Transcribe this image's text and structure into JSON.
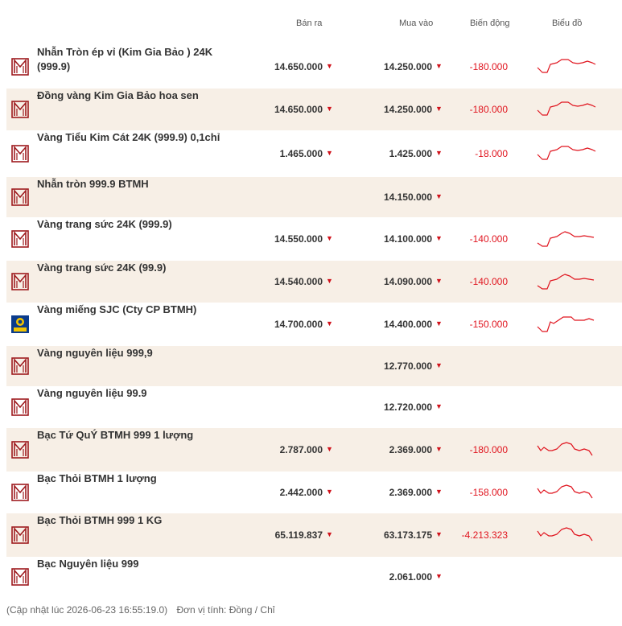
{
  "header": {
    "sell": "Bán ra",
    "buy": "Mua vào",
    "change": "Biến động",
    "chart": "Biểu đồ"
  },
  "rows": [
    {
      "name": "Nhẫn Tròn ép vỉ (Kim Gia Bảo ) 24K (999.9)",
      "sell": "14.650.000",
      "buy": "14.250.000",
      "change": "-180.000",
      "logo": "btmh-logo",
      "spark": "gold"
    },
    {
      "name": "Đồng vàng Kim Gia Bảo hoa sen",
      "sell": "14.650.000",
      "buy": "14.250.000",
      "change": "-180.000",
      "logo": "btmh-logo",
      "spark": "gold"
    },
    {
      "name": "Vàng Tiểu Kim Cát 24K (999.9) 0,1chỉ",
      "sell": "1.465.000",
      "buy": "1.425.000",
      "change": "-18.000",
      "logo": "btmh-logo",
      "spark": "gold"
    },
    {
      "name": "Nhẫn tròn 999.9 BTMH",
      "sell": "",
      "buy": "14.150.000",
      "change": "",
      "logo": "btmh-logo",
      "spark": ""
    },
    {
      "name": "Vàng trang sức 24K (999.9)",
      "sell": "14.550.000",
      "buy": "14.100.000",
      "change": "-140.000",
      "logo": "btmh-logo",
      "spark": "gold2"
    },
    {
      "name": "Vàng trang sức 24K (99.9)",
      "sell": "14.540.000",
      "buy": "14.090.000",
      "change": "-140.000",
      "logo": "btmh-logo",
      "spark": "gold2"
    },
    {
      "name": "Vàng miếng SJC (Cty CP BTMH)",
      "sell": "14.700.000",
      "buy": "14.400.000",
      "change": "-150.000",
      "logo": "sjc-logo",
      "spark": "sjc"
    },
    {
      "name": "Vàng nguyên liệu 999,9",
      "sell": "",
      "buy": "12.770.000",
      "change": "",
      "logo": "btmh-logo",
      "spark": ""
    },
    {
      "name": "Vàng nguyên liệu 99.9",
      "sell": "",
      "buy": "12.720.000",
      "change": "",
      "logo": "btmh-logo",
      "spark": ""
    },
    {
      "name": "Bạc Tứ QuÝ BTMH 999 1 lượng",
      "sell": "2.787.000",
      "buy": "2.369.000",
      "change": "-180.000",
      "logo": "btmh-logo",
      "spark": "silver"
    },
    {
      "name": "Bạc Thỏi BTMH 1 lượng",
      "sell": "2.442.000",
      "buy": "2.369.000",
      "change": "-158.000",
      "logo": "btmh-logo",
      "spark": "silver"
    },
    {
      "name": "Bạc Thỏi BTMH 999 1 KG",
      "sell": "65.119.837",
      "buy": "63.173.175",
      "change": "-4.213.323",
      "logo": "btmh-logo",
      "spark": "silver"
    },
    {
      "name": "Bạc Nguyên liệu 999",
      "sell": "",
      "buy": "2.061.000",
      "change": "",
      "logo": "btmh-logo",
      "spark": ""
    }
  ],
  "footer": {
    "updated": "(Cập nhật lúc 2026-06-23 16:55:19.0)",
    "unit": "Đơn vị tính: Đồng / Chỉ"
  },
  "colors": {
    "accent": "#9e1b1f",
    "down": "#e0141e",
    "alt_row": "#f7efe6"
  }
}
